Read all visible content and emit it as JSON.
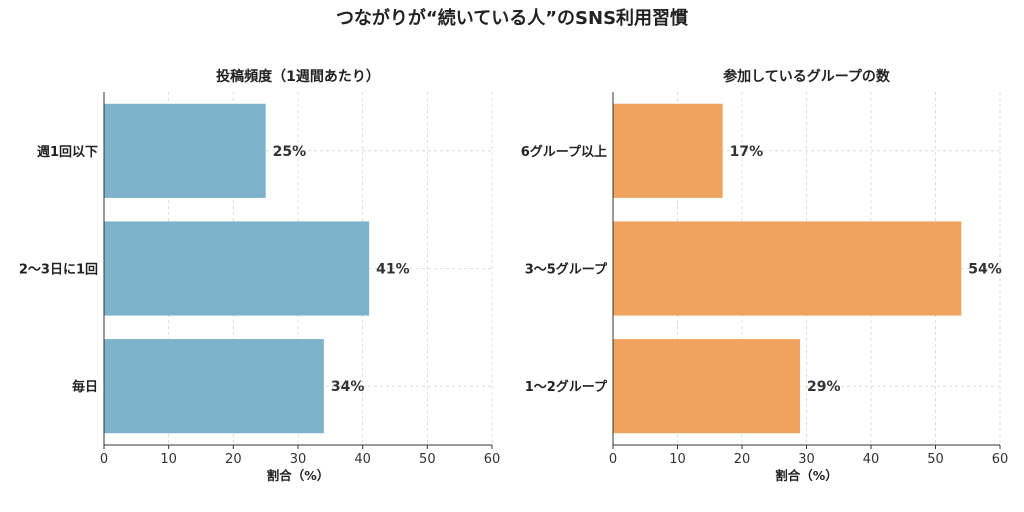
{
  "figure": {
    "title": "つながりが“続いている人”のSNS利用習慣"
  },
  "chart_data": [
    {
      "type": "bar",
      "orientation": "horizontal",
      "title": "投稿頻度（1週間あたり）",
      "xlabel": "割合（%）",
      "ylabel": "",
      "categories": [
        "週1回以下",
        "2〜3日に1回",
        "毎日"
      ],
      "values": [
        25,
        41,
        34
      ],
      "value_labels": [
        "25%",
        "41%",
        "34%"
      ],
      "xlim": [
        0,
        60
      ],
      "xticks": [
        0,
        10,
        20,
        30,
        40,
        50,
        60
      ],
      "color": "#7cb3cb",
      "grid": true
    },
    {
      "type": "bar",
      "orientation": "horizontal",
      "title": "参加しているグループの数",
      "xlabel": "割合（%）",
      "ylabel": "",
      "categories": [
        "6グループ以上",
        "3〜5グループ",
        "1〜2グループ"
      ],
      "values": [
        17,
        54,
        29
      ],
      "value_labels": [
        "17%",
        "54%",
        "29%"
      ],
      "xlim": [
        0,
        60
      ],
      "xticks": [
        0,
        10,
        20,
        30,
        40,
        50,
        60
      ],
      "color": "#efa35f",
      "grid": true
    }
  ]
}
